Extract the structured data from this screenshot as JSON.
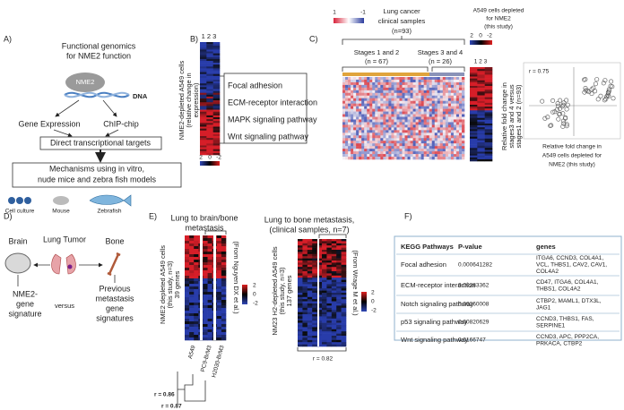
{
  "panel_a": {
    "label": "A)",
    "title": [
      "Functional genomics",
      "for NME2 function"
    ],
    "protein": "NME2",
    "dna": "DNA",
    "branches": [
      "Gene Expression",
      "ChIP-chip"
    ],
    "targets": "Direct transcriptional targets",
    "mechanisms": [
      "Mechanisms using in vitro,",
      "nude mice and zebra fish models"
    ],
    "models": [
      "Cell culture",
      "Mouse",
      "Zebrafish"
    ]
  },
  "panel_b": {
    "label": "B)",
    "columns": "1 2 3",
    "y_label": [
      "NME2-depleted A549 cells",
      "(relative change in",
      "expression)"
    ],
    "pathways": [
      "Focal adhesion",
      "ECM-receptor interaction",
      "MAPK signaling pathway",
      "Wnt signaling pathway"
    ],
    "scale": [
      "2",
      "0",
      "-2"
    ]
  },
  "panel_c": {
    "label": "C)",
    "scale_clinical": [
      "1",
      "-1"
    ],
    "clinical_title": [
      "Lung cancer",
      "clinical samples",
      "(n=93)"
    ],
    "a549_title": [
      "A549 cells depleted",
      "for NME2",
      "(this study)"
    ],
    "scale_a549": [
      "2",
      "0",
      "-2"
    ],
    "stages_early": [
      "Stages 1 and 2",
      "(n = 67)"
    ],
    "stages_late": [
      "Stages 3 and 4",
      "(n = 26)"
    ],
    "columns": "1 2 3",
    "y_label": [
      "Relative fold change in",
      "stages3 and 4 versus",
      "stages1 and 2 (n=93)"
    ],
    "correlation": "r = 0.75",
    "x_label": [
      "Relative fold change in",
      "A549 cells depleted for",
      "NME2 (this study)"
    ]
  },
  "panel_d": {
    "label": "D)",
    "organs": [
      "Brain",
      "Lung Tumor",
      "Bone"
    ],
    "left": [
      "NME2-",
      "gene",
      "signature"
    ],
    "versus": "versus",
    "right": [
      "Previous",
      "metastasis",
      "gene",
      "signatures"
    ]
  },
  "panel_e": {
    "label": "E)",
    "brain_bone": {
      "title": [
        "Lung to brain/bone",
        "metastasis"
      ],
      "y_label": [
        "NME2 depleted A549 cells",
        "(this study, n=3)",
        "39 genes"
      ],
      "source": "(From Nguyen DX et al.)",
      "scale": [
        "2",
        "0",
        "-2"
      ],
      "columns": [
        "A549",
        "PC9-BrM3",
        "H2030-BrM3"
      ],
      "correlations": [
        "r = 0.86",
        "r = 0.87"
      ]
    },
    "bone": {
      "title": [
        "Lung to bone metastasis,",
        "(clinical samples, n=7)"
      ],
      "y_label": [
        "NM23 H2-depleted A549 cells",
        "(this study, n=3)",
        "137 genes"
      ],
      "source": "(From Wrage M et al.)",
      "scale": [
        "2",
        "0",
        "-2"
      ],
      "correlation": "r = 0.82"
    }
  },
  "panel_f": {
    "label": "F)",
    "table": {
      "header": [
        "KEGG Pathways",
        "P-value",
        "genes"
      ],
      "rows": [
        [
          "Focal adhesion",
          "0.000641282",
          [
            "ITGA6, CCND3, COL4A1,",
            "VCL, THBS1, CAV2, CAV1,",
            "COL4A2"
          ]
        ],
        [
          "ECM-receptor interaction",
          "0.00283362",
          [
            "CD47, ITGA6, COL4A1,",
            "THBS1, COL4A2"
          ]
        ],
        [
          "Notch signaling pathway",
          "0.00260008",
          [
            "CTBP2, MAML1, DTX3L,",
            "JAG1"
          ]
        ],
        [
          "p53 signaling pathway",
          "0.00820629",
          [
            "CCND3, THBS1, FAS,",
            "SERPINE1"
          ]
        ],
        [
          "Wnt signaling pathway",
          "0.0166747",
          [
            "CCND3, APC, PPP2CA,",
            "PRKACA, CTBP2"
          ]
        ]
      ]
    }
  }
}
